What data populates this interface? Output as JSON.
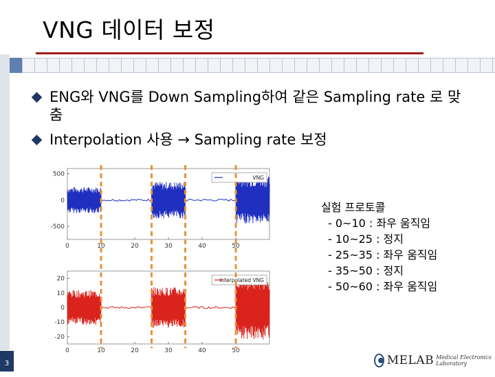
{
  "slide": {
    "title": "VNG 데이터 보정",
    "bullets": [
      "ENG와 VNG를 Down Sampling하여 같은 Sampling rate 로 맞춤",
      "Interpolation 사용 → Sampling rate 보정"
    ],
    "protocol": [
      "실험 프로토콜",
      "- 0~10 : 좌우 움직임",
      "- 10~25 : 정지",
      "- 25~35 : 좌우 움직임",
      "- 35~50 : 정지",
      "- 50~60 : 좌우 움직임"
    ],
    "page_number": "3",
    "logo": {
      "text": "MELAB",
      "subtext": "Medical Electronics Laboratory"
    }
  },
  "colors": {
    "accent_rule": "#9b1b1b",
    "bullet": "#1f3864",
    "top_series": "#1f2fbf",
    "bottom_series": "#d9231c",
    "marker_lines": "#e8923a"
  },
  "chart_data": [
    {
      "type": "line",
      "title": "",
      "legend": {
        "entries": [
          "VNG"
        ],
        "position": "top-right"
      },
      "xlim": [
        0,
        60
      ],
      "ylim": [
        -750,
        600
      ],
      "x_ticks": [
        "0",
        "10",
        "20",
        "30",
        "40",
        "50"
      ],
      "y_ticks": [
        "500",
        "0",
        "-500"
      ],
      "series": [
        {
          "name": "VNG",
          "color": "#1f2fbf"
        }
      ],
      "segments": [
        {
          "x": [
            0,
            10
          ],
          "pattern": "oscillation",
          "amplitude": 250
        },
        {
          "x": [
            10,
            25
          ],
          "pattern": "flat"
        },
        {
          "x": [
            25,
            35
          ],
          "pattern": "oscillation",
          "amplitude": 350
        },
        {
          "x": [
            35,
            50
          ],
          "pattern": "flat"
        },
        {
          "x": [
            50,
            60
          ],
          "pattern": "oscillation",
          "amplitude": 450
        }
      ]
    },
    {
      "type": "line",
      "title": "",
      "legend": {
        "entries": [
          "Interpolated VNG"
        ],
        "position": "top-right"
      },
      "xlim": [
        0,
        60
      ],
      "ylim": [
        -25,
        25
      ],
      "x_ticks": [
        "0",
        "10",
        "20",
        "30",
        "40",
        "50"
      ],
      "y_ticks": [
        "20",
        "10",
        "0",
        "-10",
        "-20"
      ],
      "series": [
        {
          "name": "Interpolated VNG",
          "color": "#d9231c"
        }
      ],
      "segments": [
        {
          "x": [
            0,
            10
          ],
          "pattern": "oscillation",
          "amplitude": 12
        },
        {
          "x": [
            10,
            25
          ],
          "pattern": "flat"
        },
        {
          "x": [
            25,
            35
          ],
          "pattern": "oscillation",
          "amplitude": 14
        },
        {
          "x": [
            35,
            50
          ],
          "pattern": "flat"
        },
        {
          "x": [
            50,
            60
          ],
          "pattern": "oscillation",
          "amplitude": 22
        }
      ]
    }
  ],
  "marker_lines": {
    "x": [
      10,
      25,
      35,
      50
    ]
  }
}
